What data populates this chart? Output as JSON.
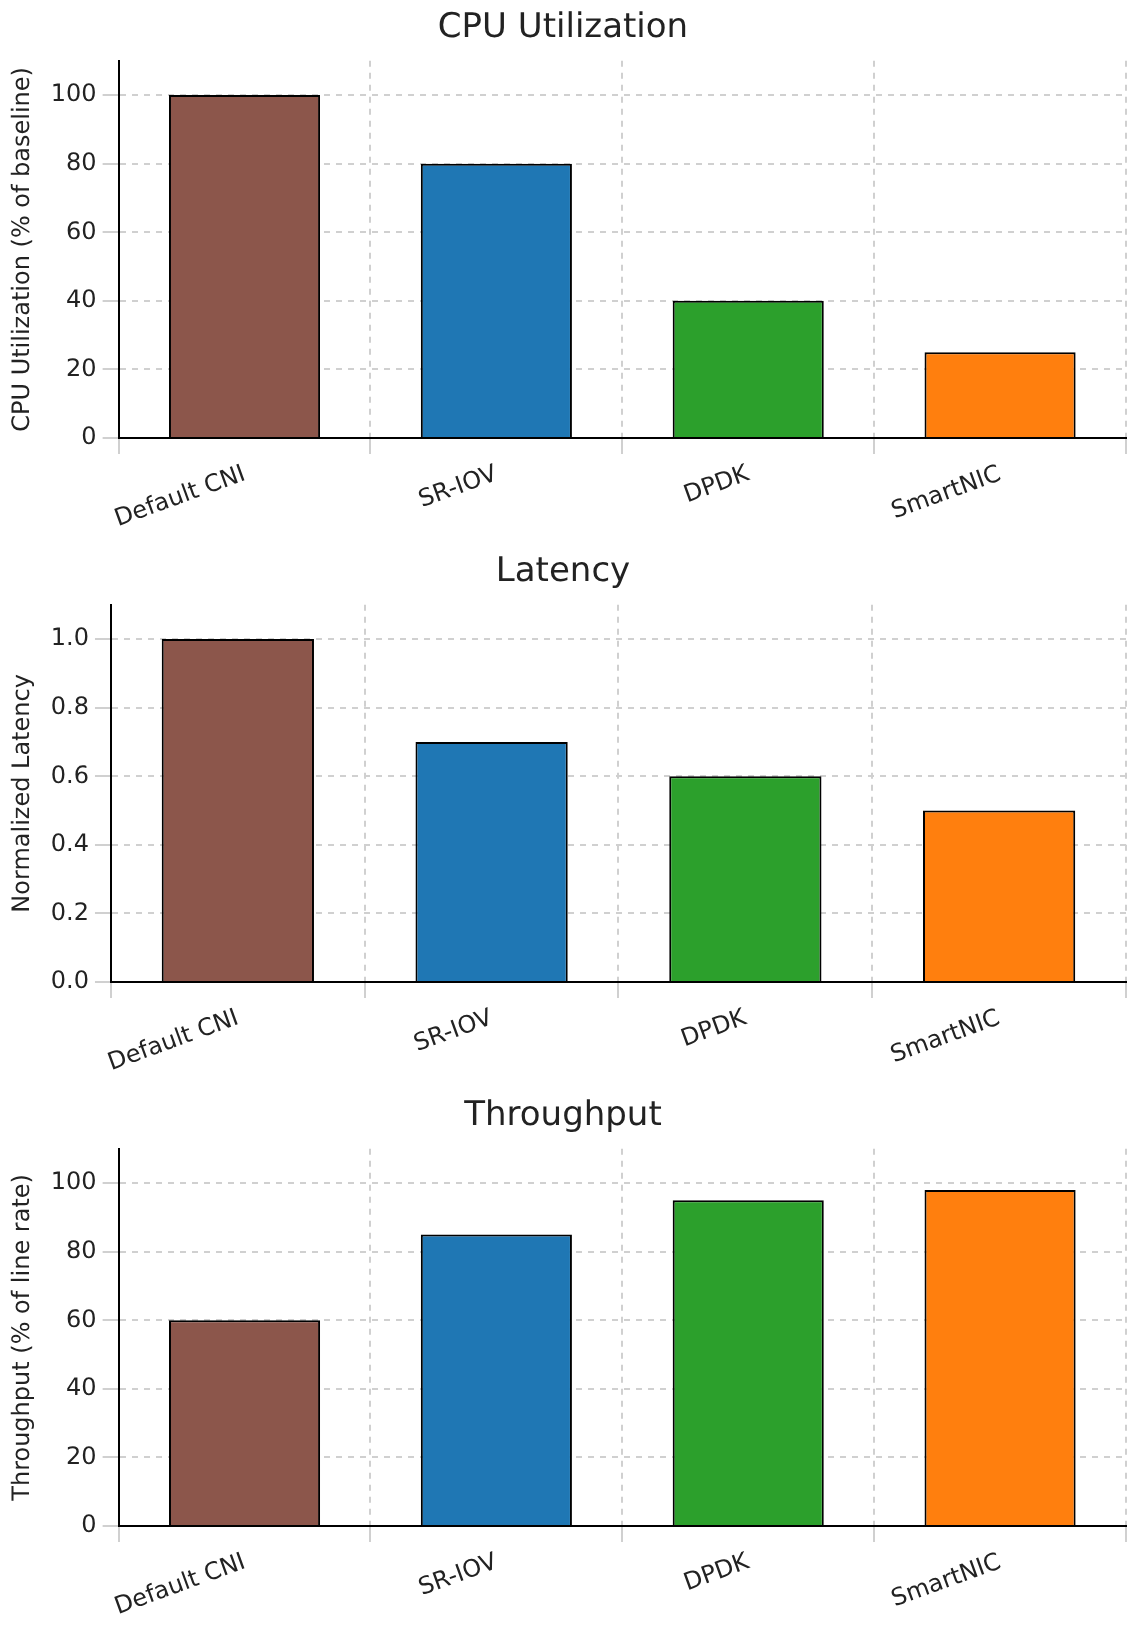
{
  "chart_data": [
    {
      "type": "bar",
      "title": "CPU Utilization",
      "ylabel": "CPU Utilization (% of baseline)",
      "categories": [
        "Default CNI",
        "SR-IOV",
        "DPDK",
        "SmartNIC"
      ],
      "values": [
        100,
        80,
        40,
        25
      ],
      "colors": [
        "#8c564b",
        "#1f77b4",
        "#2ca02c",
        "#ff7f0e"
      ],
      "ylim": [
        0,
        110
      ],
      "yticks": [
        0,
        20,
        40,
        60,
        80,
        100
      ],
      "grid": true
    },
    {
      "type": "bar",
      "title": "Latency",
      "ylabel": "Normalized Latency",
      "categories": [
        "Default CNI",
        "SR-IOV",
        "DPDK",
        "SmartNIC"
      ],
      "values": [
        1.0,
        0.7,
        0.6,
        0.5
      ],
      "colors": [
        "#8c564b",
        "#1f77b4",
        "#2ca02c",
        "#ff7f0e"
      ],
      "ylim": [
        0,
        1.1
      ],
      "yticks": [
        {
          "value": 0,
          "label": "0.0"
        },
        {
          "value": 0.2,
          "label": "0.2"
        },
        {
          "value": 0.4,
          "label": "0.4"
        },
        {
          "value": 0.6,
          "label": "0.6"
        },
        {
          "value": 0.8,
          "label": "0.8"
        },
        {
          "value": 1,
          "label": "1.0"
        }
      ],
      "grid": true
    },
    {
      "type": "bar",
      "title": "Throughput",
      "ylabel": "Throughput (% of line rate)",
      "categories": [
        "Default CNI",
        "SR-IOV",
        "DPDK",
        "SmartNIC"
      ],
      "values": [
        60,
        85,
        95,
        98
      ],
      "colors": [
        "#8c564b",
        "#1f77b4",
        "#2ca02c",
        "#ff7f0e"
      ],
      "ylim": [
        0,
        110
      ],
      "yticks": [
        0,
        20,
        40,
        60,
        80,
        100
      ],
      "grid": true
    }
  ]
}
